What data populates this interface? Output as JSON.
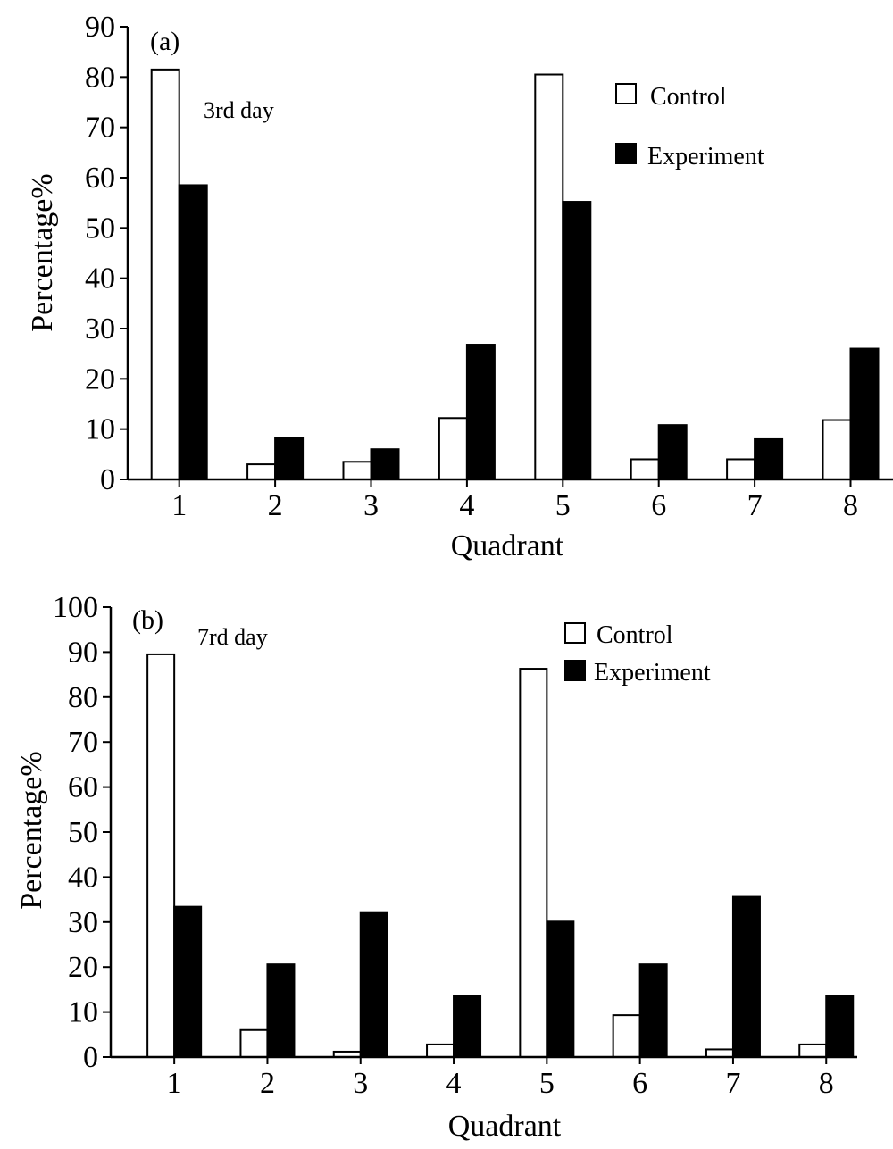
{
  "chart_data": [
    {
      "type": "bar",
      "panel_label": "(a)",
      "annotation": "3rd day",
      "xlabel": "Quadrant",
      "ylabel": "Percentage%",
      "categories": [
        "1",
        "2",
        "3",
        "4",
        "5",
        "6",
        "7",
        "8"
      ],
      "ylim": [
        0,
        90
      ],
      "yticks": [
        0,
        10,
        20,
        30,
        40,
        50,
        60,
        70,
        80,
        90
      ],
      "legend_position": "top-right",
      "series": [
        {
          "name": "Control",
          "color": "#ffffff",
          "values": [
            81.5,
            3,
            3.5,
            12.2,
            80.5,
            4,
            4,
            11.8
          ]
        },
        {
          "name": "Experiment",
          "color": "#000000",
          "values": [
            58.5,
            8.3,
            6,
            26.8,
            55.2,
            10.8,
            8,
            26
          ]
        }
      ]
    },
    {
      "type": "bar",
      "panel_label": "(b)",
      "annotation": "7rd day",
      "xlabel": "Quadrant",
      "ylabel": "Percentage%",
      "categories": [
        "1",
        "2",
        "3",
        "4",
        "5",
        "6",
        "7",
        "8"
      ],
      "ylim": [
        0,
        100
      ],
      "yticks": [
        0,
        10,
        20,
        30,
        40,
        50,
        60,
        70,
        80,
        90,
        100
      ],
      "legend_position": "top-right",
      "series": [
        {
          "name": "Control",
          "color": "#ffffff",
          "values": [
            89.5,
            6,
            1.2,
            2.8,
            86.3,
            9.3,
            1.7,
            2.8
          ]
        },
        {
          "name": "Experiment",
          "color": "#000000",
          "values": [
            33.4,
            20.6,
            32.2,
            13.6,
            30.1,
            20.6,
            35.6,
            13.6
          ]
        }
      ]
    }
  ]
}
